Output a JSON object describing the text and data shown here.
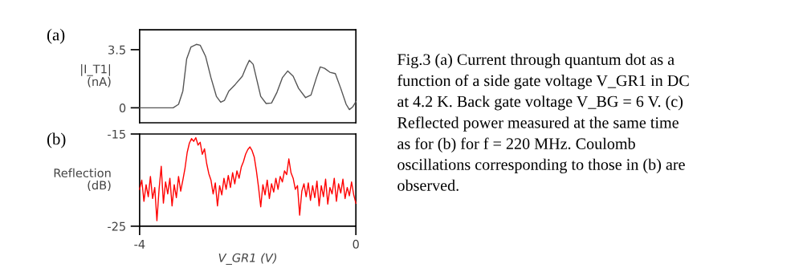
{
  "chart_data": [
    {
      "type": "line",
      "title": "(a)",
      "ylabel": "|I_T1|\n(nA)",
      "xlim": [
        -4,
        0
      ],
      "ylim": [
        -0.9,
        4.7
      ],
      "yticks": [
        0,
        3.5
      ],
      "tick_labels": "y",
      "grid": false,
      "legend": false,
      "series": [
        {
          "color": "#555555",
          "x": [
            -4,
            -3.38,
            -3.28,
            -3.2,
            -3.13,
            -3.05,
            -2.95,
            -2.88,
            -2.78,
            -2.68,
            -2.58,
            -2.5,
            -2.43,
            -2.35,
            -2.23,
            -2.1,
            -2.03,
            -1.97,
            -1.9,
            -1.83,
            -1.76,
            -1.66,
            -1.56,
            -1.46,
            -1.36,
            -1.26,
            -1.16,
            -1.06,
            -0.93,
            -0.83,
            -0.73,
            -0.66,
            -0.58,
            -0.48,
            -0.38,
            -0.28,
            -0.18,
            -0.12,
            -0.06,
            0
          ],
          "values": [
            0,
            0,
            0.21,
            1.01,
            2.94,
            3.66,
            3.82,
            3.77,
            3.1,
            1.81,
            0.69,
            0.34,
            0.45,
            1.01,
            1.41,
            1.9,
            2.46,
            2.86,
            2.62,
            1.65,
            0.69,
            0.26,
            0.29,
            0.93,
            1.81,
            2.22,
            1.9,
            1.17,
            0.61,
            0.77,
            1.81,
            2.46,
            2.38,
            2.14,
            2.06,
            1.17,
            0.21,
            -0.11,
            0.05,
            0.37
          ]
        }
      ]
    },
    {
      "type": "line",
      "title": "(b)",
      "xlabel": "V_GR1 (V)",
      "ylabel": "Reflection\n(dB)",
      "xlim": [
        -4,
        0
      ],
      "xticks": [
        -4,
        0
      ],
      "ylim": [
        -25,
        -15
      ],
      "yticks": [
        -15,
        -25
      ],
      "grid": false,
      "legend": false,
      "series": [
        {
          "color": "#ff0000",
          "x": [
            -4,
            -3.96,
            -3.92,
            -3.88,
            -3.84,
            -3.8,
            -3.76,
            -3.72,
            -3.68,
            -3.64,
            -3.6,
            -3.56,
            -3.52,
            -3.48,
            -3.44,
            -3.4,
            -3.36,
            -3.32,
            -3.28,
            -3.24,
            -3.2,
            -3.16,
            -3.12,
            -3.08,
            -3.04,
            -3,
            -2.96,
            -2.92,
            -2.88,
            -2.84,
            -2.8,
            -2.76,
            -2.72,
            -2.68,
            -2.64,
            -2.6,
            -2.56,
            -2.52,
            -2.48,
            -2.44,
            -2.4,
            -2.36,
            -2.32,
            -2.28,
            -2.24,
            -2.2,
            -2.16,
            -2.12,
            -2.08,
            -2.04,
            -2,
            -1.96,
            -1.92,
            -1.88,
            -1.84,
            -1.8,
            -1.76,
            -1.72,
            -1.68,
            -1.64,
            -1.6,
            -1.56,
            -1.52,
            -1.48,
            -1.44,
            -1.4,
            -1.36,
            -1.32,
            -1.28,
            -1.24,
            -1.2,
            -1.16,
            -1.12,
            -1.08,
            -1.04,
            -1,
            -0.96,
            -0.92,
            -0.88,
            -0.84,
            -0.8,
            -0.76,
            -0.72,
            -0.68,
            -0.64,
            -0.6,
            -0.56,
            -0.52,
            -0.48,
            -0.44,
            -0.4,
            -0.36,
            -0.32,
            -0.28,
            -0.24,
            -0.2,
            -0.16,
            -0.12,
            -0.08,
            -0.04,
            0
          ],
          "values": [
            -21.0,
            -20.0,
            -22.3,
            -20.5,
            -21.8,
            -19.6,
            -22.0,
            -20.8,
            -24.4,
            -21.0,
            -18.5,
            -22.5,
            -20.2,
            -21.5,
            -19.8,
            -22.8,
            -20.5,
            -21.9,
            -19.6,
            -21.2,
            -20.0,
            -18.7,
            -17.0,
            -16.0,
            -15.5,
            -15.8,
            -15.4,
            -16.2,
            -15.9,
            -17.2,
            -16.6,
            -18.2,
            -19.3,
            -20.0,
            -21.5,
            -20.3,
            -22.8,
            -20.6,
            -21.6,
            -19.8,
            -21.0,
            -19.5,
            -20.8,
            -19.2,
            -20.4,
            -19.0,
            -19.8,
            -18.6,
            -18.0,
            -17.2,
            -16.7,
            -16.4,
            -16.8,
            -17.5,
            -19.0,
            -20.8,
            -22.9,
            -20.5,
            -21.6,
            -20.0,
            -22.0,
            -20.4,
            -21.3,
            -19.8,
            -21.0,
            -19.6,
            -20.2,
            -19.0,
            -19.4,
            -17.7,
            -19.2,
            -19.8,
            -21.0,
            -20.6,
            -23.8,
            -21.2,
            -20.4,
            -21.8,
            -20.3,
            -22.2,
            -20.6,
            -21.9,
            -20.1,
            -22.8,
            -20.6,
            -21.8,
            -19.9,
            -22.6,
            -20.8,
            -21.5,
            -19.8,
            -22.3,
            -20.4,
            -21.4,
            -19.9,
            -22.0,
            -20.8,
            -21.7,
            -20.2,
            -21.6,
            -22.5
          ]
        }
      ]
    },
    {
      "type": "other",
      "annotations": [
        "Fig.3 (a) Current through quantum dot as a\nfunction of a side gate voltage V_GR1 in DC\nat 4.2 K. Back gate voltage V_BG = 6 V. (c)\nReflected power measured at the same time\nas for (b) for f = 220 MHz. Coulomb\noscillations corresponding to those in (b) are\nobserved."
      ]
    }
  ]
}
